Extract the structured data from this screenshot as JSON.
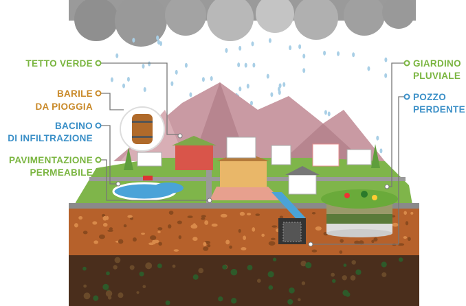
{
  "labels": [
    {
      "lines": [
        "TETTO VERDE"
      ]
    },
    {
      "lines": [
        "BARILE",
        "DA PIOGGIA"
      ]
    },
    {
      "lines": [
        "BACINO",
        "DI INFILTRAZIONE"
      ]
    },
    {
      "lines": [
        "PAVIMENTAZIONE",
        "PERMEABILE"
      ]
    },
    {
      "lines": [
        "GIARDINO",
        "PLUVIALE"
      ]
    },
    {
      "lines": [
        "POZZO",
        "PERDENTE"
      ]
    }
  ]
}
